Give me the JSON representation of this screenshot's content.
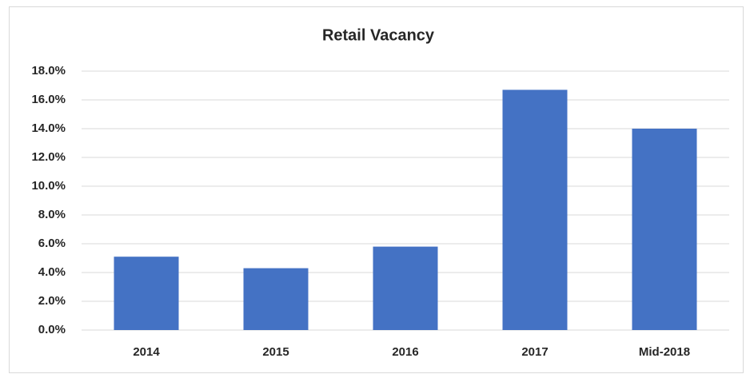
{
  "chart_data": {
    "type": "bar",
    "title": "Retail Vacancy",
    "categories": [
      "2014",
      "2015",
      "2016",
      "2017",
      "Mid-2018"
    ],
    "values": [
      5.1,
      4.3,
      5.8,
      16.7,
      14.0
    ],
    "color": "#4472c4",
    "ylim": [
      0,
      18
    ],
    "yticks": [
      {
        "value": 0,
        "label": "0.0%"
      },
      {
        "value": 2,
        "label": "2.0%"
      },
      {
        "value": 4,
        "label": "4.0%"
      },
      {
        "value": 6,
        "label": "6.0%"
      },
      {
        "value": 8,
        "label": "8.0%"
      },
      {
        "value": 10,
        "label": "10.0%"
      },
      {
        "value": 12,
        "label": "12.0%"
      },
      {
        "value": 14,
        "label": "14.0%"
      },
      {
        "value": 16,
        "label": "16.0%"
      },
      {
        "value": 18,
        "label": "18.0%"
      }
    ],
    "grid": true
  }
}
